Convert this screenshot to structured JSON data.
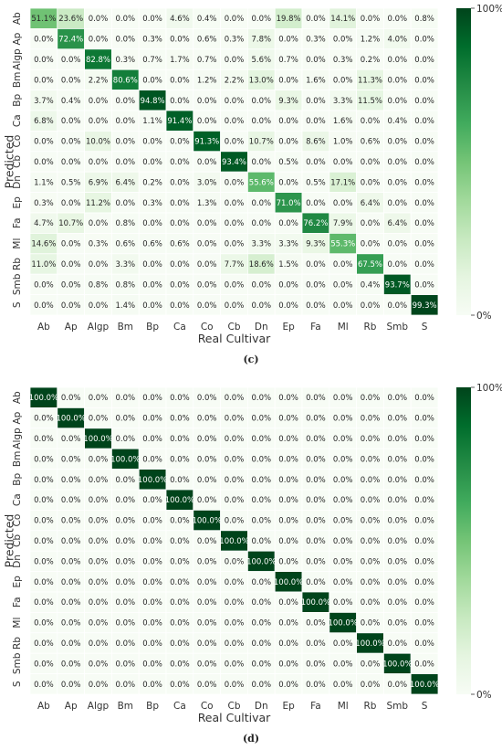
{
  "chart_data": [
    {
      "type": "heatmap",
      "panel_label": "(c)",
      "xlabel": "Real Cultivar",
      "ylabel": "Predicted",
      "x_categories": [
        "Ab",
        "Ap",
        "Algp",
        "Bm",
        "Bp",
        "Ca",
        "Co",
        "Cb",
        "Dn",
        "Ep",
        "Fa",
        "Ml",
        "Rb",
        "Smb",
        "S"
      ],
      "y_categories": [
        "Ab",
        "Ap",
        "Algp",
        "Bm",
        "Bp",
        "Ca",
        "Co",
        "Cb",
        "Dn",
        "Ep",
        "Fa",
        "Ml",
        "Rb",
        "Smb",
        "S"
      ],
      "colorbar": {
        "min_label": "0%",
        "max_label": "100%",
        "low_color": "#f7fcf5",
        "high_color": "#00441b"
      },
      "values": [
        [
          51.1,
          23.6,
          0.0,
          0.0,
          0.0,
          4.6,
          0.4,
          0.0,
          0.0,
          19.8,
          0.0,
          14.1,
          0.0,
          0.0,
          0.8
        ],
        [
          0.0,
          72.4,
          0.0,
          0.0,
          0.3,
          0.0,
          0.6,
          0.3,
          7.8,
          0.0,
          0.3,
          0.0,
          1.2,
          4.0,
          0.0
        ],
        [
          0.0,
          0.0,
          82.8,
          0.3,
          0.7,
          1.7,
          0.7,
          0.0,
          5.6,
          0.7,
          0.0,
          0.3,
          0.2,
          0.0,
          0.0
        ],
        [
          0.0,
          0.0,
          2.2,
          80.6,
          0.0,
          0.0,
          1.2,
          2.2,
          13.0,
          0.0,
          1.6,
          0.0,
          11.3,
          0.0,
          0.0
        ],
        [
          3.7,
          0.4,
          0.0,
          0.0,
          94.8,
          0.0,
          0.0,
          0.0,
          0.0,
          9.3,
          0.0,
          3.3,
          11.5,
          0.0,
          0.0
        ],
        [
          6.8,
          0.0,
          0.0,
          0.0,
          1.1,
          91.4,
          0.0,
          0.0,
          0.0,
          0.0,
          0.0,
          1.6,
          0.0,
          0.4,
          0.0
        ],
        [
          0.0,
          0.0,
          10.0,
          0.0,
          0.0,
          0.0,
          91.3,
          0.0,
          10.7,
          0.0,
          8.6,
          1.0,
          0.6,
          0.0,
          0.0
        ],
        [
          0.0,
          0.0,
          0.0,
          0.0,
          0.0,
          0.0,
          0.0,
          93.4,
          0.0,
          0.5,
          0.0,
          0.0,
          0.0,
          0.0,
          0.0
        ],
        [
          1.1,
          0.5,
          6.9,
          6.4,
          0.2,
          0.0,
          3.0,
          0.0,
          55.6,
          0.0,
          0.5,
          17.1,
          0.0,
          0.0,
          0.0
        ],
        [
          0.3,
          0.0,
          11.2,
          0.0,
          0.3,
          0.0,
          1.3,
          0.0,
          0.0,
          71.0,
          0.0,
          0.0,
          6.4,
          0.0,
          0.0
        ],
        [
          4.7,
          10.7,
          0.0,
          0.8,
          0.0,
          0.0,
          0.0,
          0.0,
          0.0,
          0.0,
          76.2,
          7.9,
          0.0,
          6.4,
          0.0
        ],
        [
          14.6,
          0.0,
          0.3,
          0.6,
          0.6,
          0.6,
          0.0,
          0.0,
          3.3,
          3.3,
          9.3,
          55.3,
          0.0,
          0.0,
          0.0
        ],
        [
          11.0,
          0.0,
          0.0,
          3.3,
          0.0,
          0.0,
          0.0,
          7.7,
          18.6,
          1.5,
          0.0,
          0.0,
          67.5,
          0.0,
          0.0
        ],
        [
          0.0,
          0.0,
          0.8,
          0.8,
          0.0,
          0.0,
          0.0,
          0.0,
          0.0,
          0.0,
          0.0,
          0.0,
          0.4,
          93.7,
          0.0
        ],
        [
          0.0,
          0.0,
          0.0,
          1.4,
          0.0,
          0.0,
          0.0,
          0.0,
          0.0,
          0.0,
          0.0,
          0.0,
          0.0,
          0.0,
          99.3
        ]
      ]
    },
    {
      "type": "heatmap",
      "panel_label": "(d)",
      "xlabel": "Real Cultivar",
      "ylabel": "Predicted",
      "x_categories": [
        "Ab",
        "Ap",
        "Algp",
        "Bm",
        "Bp",
        "Ca",
        "Co",
        "Cb",
        "Dn",
        "Ep",
        "Fa",
        "Ml",
        "Rb",
        "Smb",
        "S"
      ],
      "y_categories": [
        "Ab",
        "Ap",
        "Algp",
        "Bm",
        "Bp",
        "Ca",
        "Co",
        "Cb",
        "Dn",
        "Ep",
        "Fa",
        "Ml",
        "Rb",
        "Smb",
        "S"
      ],
      "colorbar": {
        "min_label": "0%",
        "max_label": "100%",
        "low_color": "#f7fcf5",
        "high_color": "#00441b"
      },
      "values": [
        [
          100.0,
          0.0,
          0.0,
          0.0,
          0.0,
          0.0,
          0.0,
          0.0,
          0.0,
          0.0,
          0.0,
          0.0,
          0.0,
          0.0,
          0.0
        ],
        [
          0.0,
          100.0,
          0.0,
          0.0,
          0.0,
          0.0,
          0.0,
          0.0,
          0.0,
          0.0,
          0.0,
          0.0,
          0.0,
          0.0,
          0.0
        ],
        [
          0.0,
          0.0,
          100.0,
          0.0,
          0.0,
          0.0,
          0.0,
          0.0,
          0.0,
          0.0,
          0.0,
          0.0,
          0.0,
          0.0,
          0.0
        ],
        [
          0.0,
          0.0,
          0.0,
          100.0,
          0.0,
          0.0,
          0.0,
          0.0,
          0.0,
          0.0,
          0.0,
          0.0,
          0.0,
          0.0,
          0.0
        ],
        [
          0.0,
          0.0,
          0.0,
          0.0,
          100.0,
          0.0,
          0.0,
          0.0,
          0.0,
          0.0,
          0.0,
          0.0,
          0.0,
          0.0,
          0.0
        ],
        [
          0.0,
          0.0,
          0.0,
          0.0,
          0.0,
          100.0,
          0.0,
          0.0,
          0.0,
          0.0,
          0.0,
          0.0,
          0.0,
          0.0,
          0.0
        ],
        [
          0.0,
          0.0,
          0.0,
          0.0,
          0.0,
          0.0,
          100.0,
          0.0,
          0.0,
          0.0,
          0.0,
          0.0,
          0.0,
          0.0,
          0.0
        ],
        [
          0.0,
          0.0,
          0.0,
          0.0,
          0.0,
          0.0,
          0.0,
          100.0,
          0.0,
          0.0,
          0.0,
          0.0,
          0.0,
          0.0,
          0.0
        ],
        [
          0.0,
          0.0,
          0.0,
          0.0,
          0.0,
          0.0,
          0.0,
          0.0,
          100.0,
          0.0,
          0.0,
          0.0,
          0.0,
          0.0,
          0.0
        ],
        [
          0.0,
          0.0,
          0.0,
          0.0,
          0.0,
          0.0,
          0.0,
          0.0,
          0.0,
          100.0,
          0.0,
          0.0,
          0.0,
          0.0,
          0.0
        ],
        [
          0.0,
          0.0,
          0.0,
          0.0,
          0.0,
          0.0,
          0.0,
          0.0,
          0.0,
          0.0,
          100.0,
          0.0,
          0.0,
          0.0,
          0.0
        ],
        [
          0.0,
          0.0,
          0.0,
          0.0,
          0.0,
          0.0,
          0.0,
          0.0,
          0.0,
          0.0,
          0.0,
          100.0,
          0.0,
          0.0,
          0.0
        ],
        [
          0.0,
          0.0,
          0.0,
          0.0,
          0.0,
          0.0,
          0.0,
          0.0,
          0.0,
          0.0,
          0.0,
          0.0,
          100.0,
          0.0,
          0.0
        ],
        [
          0.0,
          0.0,
          0.0,
          0.0,
          0.0,
          0.0,
          0.0,
          0.0,
          0.0,
          0.0,
          0.0,
          0.0,
          0.0,
          100.0,
          0.0
        ],
        [
          0.0,
          0.0,
          0.0,
          0.0,
          0.0,
          0.0,
          0.0,
          0.0,
          0.0,
          0.0,
          0.0,
          0.0,
          0.0,
          0.0,
          100.0
        ]
      ]
    }
  ]
}
